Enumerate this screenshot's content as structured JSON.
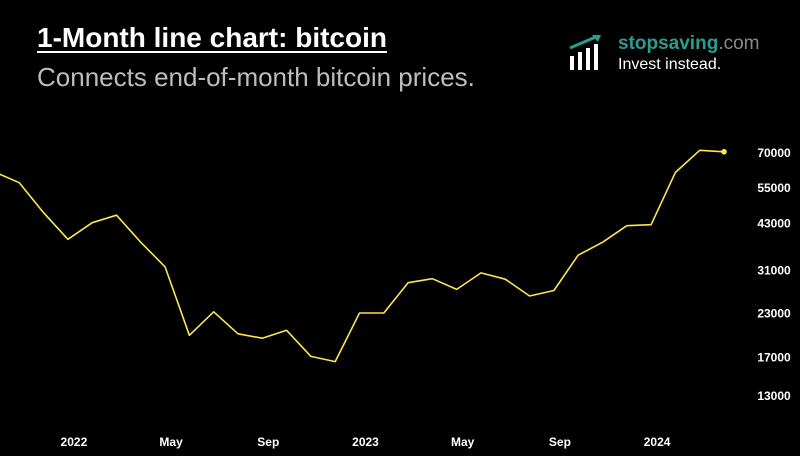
{
  "header": {
    "title": "1-Month line chart: bitcoin",
    "subtitle": "Connects end-of-month bitcoin prices."
  },
  "brand": {
    "name_main": "stopsaving",
    "name_suffix": ".com",
    "tagline": "Invest instead.",
    "icon": "bar-chart-growth-icon",
    "color": "#2a9d8f"
  },
  "chart_data": {
    "type": "line",
    "title": "1-Month line chart: bitcoin",
    "subtitle": "Connects end-of-month bitcoin prices.",
    "scale": "log",
    "line_color": "#ffe44d",
    "grid": false,
    "y_ticks": [
      13000,
      17000,
      23000,
      31000,
      43000,
      55000,
      70000
    ],
    "x_ticks": [
      "2022",
      "May",
      "Sep",
      "2023",
      "May",
      "Sep",
      "2024"
    ],
    "x": [
      "2021-10",
      "2021-11",
      "2021-12",
      "2022-01",
      "2022-02",
      "2022-03",
      "2022-04",
      "2022-05",
      "2022-06",
      "2022-07",
      "2022-08",
      "2022-09",
      "2022-10",
      "2022-11",
      "2022-12",
      "2023-01",
      "2023-02",
      "2023-03",
      "2023-04",
      "2023-05",
      "2023-06",
      "2023-07",
      "2023-08",
      "2023-09",
      "2023-10",
      "2023-11",
      "2023-12",
      "2024-01",
      "2024-02",
      "2024-03",
      "2024-04"
    ],
    "series": [
      {
        "values": [
          61300,
          57000,
          46300,
          38500,
          43200,
          45500,
          37700,
          31800,
          19800,
          23300,
          20000,
          19400,
          20500,
          17100,
          16500,
          23100,
          23100,
          28500,
          29300,
          27200,
          30500,
          29200,
          26000,
          27000,
          34500,
          37700,
          42300,
          42600,
          61200,
          71300,
          70600
        ]
      }
    ]
  }
}
